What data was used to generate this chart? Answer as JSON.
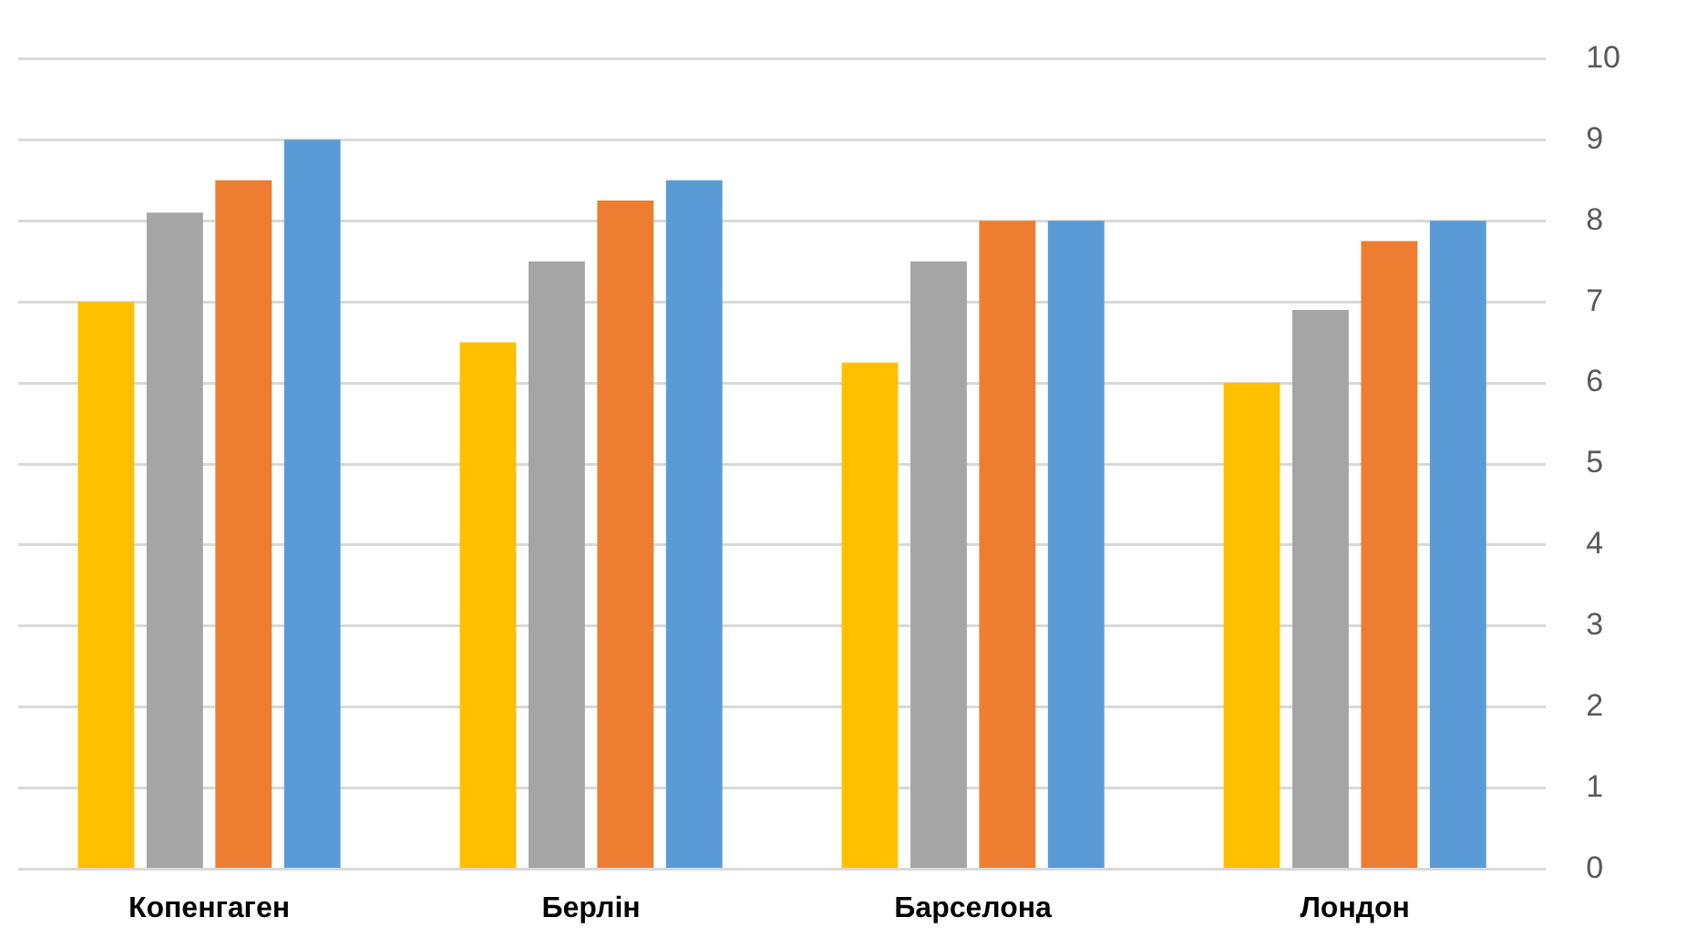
{
  "chart_data": {
    "type": "bar",
    "categories": [
      "Копенгаген",
      "Берлін",
      "Барселона",
      "Лондон"
    ],
    "series": [
      {
        "color": "#ffc000",
        "values": [
          7,
          6.5,
          6.25,
          6
        ]
      },
      {
        "color": "#a5a5a5",
        "values": [
          8.1,
          7.5,
          7.5,
          6.9
        ]
      },
      {
        "color": "#ed7d31",
        "values": [
          8.5,
          8.25,
          8,
          7.75
        ]
      },
      {
        "color": "#5b9bd5",
        "values": [
          9,
          8.5,
          8,
          8
        ]
      }
    ],
    "ylim": [
      0,
      10
    ],
    "yticks": [
      0,
      1,
      2,
      3,
      4,
      5,
      6,
      7,
      8,
      9,
      10
    ],
    "grid": "y",
    "legend": false
  }
}
